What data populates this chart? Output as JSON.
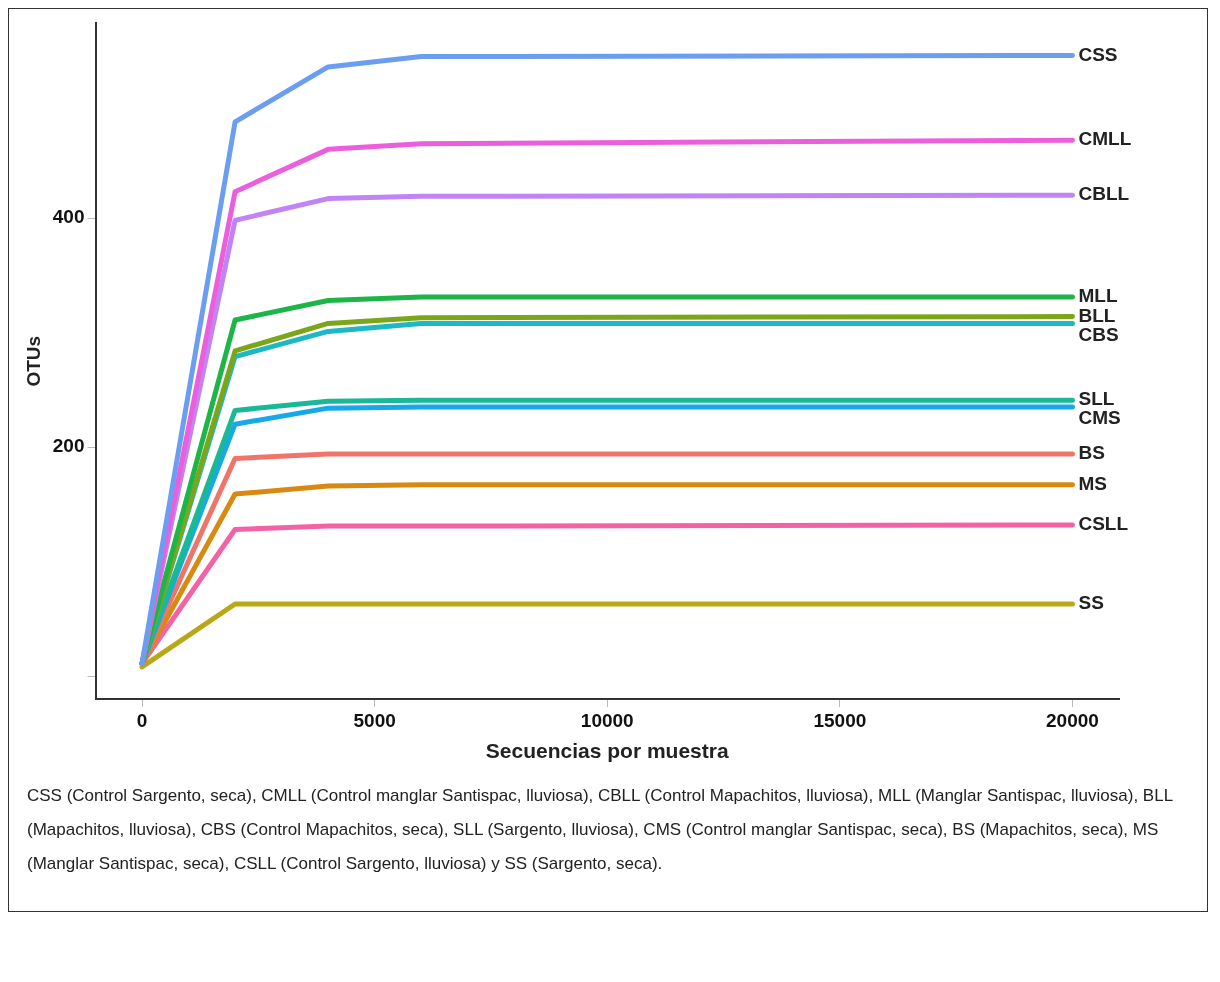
{
  "chart_data": {
    "type": "line",
    "xlabel": "Secuencias por muestra",
    "ylabel": "OTUs",
    "x": [
      0,
      2000,
      4000,
      6000,
      20000
    ],
    "xlim": [
      -1000,
      21000
    ],
    "xticks": [
      0,
      5000,
      10000,
      15000,
      20000
    ],
    "ylim": [
      -20,
      570
    ],
    "yticks": [
      {
        "value": 0,
        "label": null
      },
      200,
      400
    ],
    "grid": false,
    "legend": false,
    "marker": "none",
    "line_style": "solid",
    "series": [
      {
        "name": "CSS",
        "color": "#6b9ef0",
        "values": [
          11,
          484,
          532,
          541,
          542
        ]
      },
      {
        "name": "CMLL",
        "color": "#ec5fdc",
        "values": [
          11,
          423,
          460,
          465,
          468
        ]
      },
      {
        "name": "CBLL",
        "color": "#c084f4",
        "values": [
          11,
          398,
          417,
          419,
          420
        ]
      },
      {
        "name": "MLL",
        "color": "#1db548",
        "values": [
          11,
          311,
          328,
          331,
          331
        ]
      },
      {
        "name": "BLL",
        "color": "#7ca61a",
        "values": [
          11,
          284,
          308,
          313,
          314
        ]
      },
      {
        "name": "CBS",
        "color": "#1cb8c4",
        "values": [
          11,
          279,
          301,
          308,
          308
        ]
      },
      {
        "name": "SLL",
        "color": "#1ab896",
        "values": [
          11,
          232,
          240,
          241,
          241
        ]
      },
      {
        "name": "CMS",
        "color": "#16a8e8",
        "values": [
          11,
          220,
          234,
          235,
          235
        ]
      },
      {
        "name": "BS",
        "color": "#f07468",
        "values": [
          11,
          190,
          194,
          194,
          194
        ]
      },
      {
        "name": "MS",
        "color": "#d88a10",
        "values": [
          11,
          159,
          166,
          167,
          167
        ]
      },
      {
        "name": "CSLL",
        "color": "#f462a6",
        "values": [
          11,
          128,
          131,
          131,
          132
        ]
      },
      {
        "name": "SS",
        "color": "#b8a816",
        "values": [
          8,
          63,
          63,
          63,
          63
        ]
      }
    ],
    "annotations": [
      "CSS (Control Sargento, seca), CMLL (Control manglar Santispac, lluviosa), CBLL (Control Mapachitos, lluviosa), MLL (Manglar Santispac, lluviosa), BLL (Mapachitos, lluviosa), CBS (Control Mapachitos, seca), SLL (Sargento, lluviosa), CMS (Control manglar Santispac, seca), BS (Mapachitos, seca), MS (Manglar Santispac, seca), CSLL (Control Sargento, lluviosa) y SS (Sargento, seca)."
    ]
  }
}
